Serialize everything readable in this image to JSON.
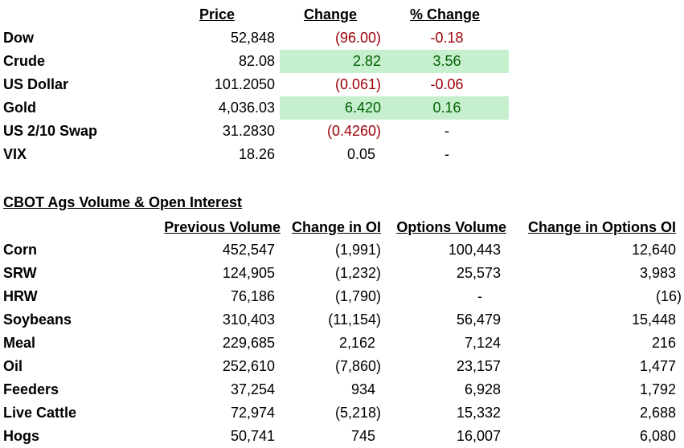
{
  "markets": {
    "headers": {
      "price": "Price",
      "change": "Change",
      "pct_change": "% Change"
    },
    "rows": [
      {
        "name": "Dow",
        "price": "52,848",
        "change": "(96.00)",
        "pct": "-0.18",
        "dir": "neg"
      },
      {
        "name": "Crude",
        "price": "82.08",
        "change": "2.82",
        "pct": "3.56",
        "dir": "pos"
      },
      {
        "name": "US Dollar",
        "price": "101.2050",
        "change": "(0.061)",
        "pct": "-0.06",
        "dir": "neg"
      },
      {
        "name": "Gold",
        "price": "4,036.03",
        "change": "6.420",
        "pct": "0.16",
        "dir": "pos"
      },
      {
        "name": "US 2/10 Swap",
        "price": "31.2830",
        "change": "(0.4260)",
        "pct": "-",
        "dir": "neg2"
      },
      {
        "name": "VIX",
        "price": "18.26",
        "change": "0.05",
        "pct": "-",
        "dir": "none"
      }
    ]
  },
  "cbot": {
    "title": "CBOT Ags Volume & Open Interest",
    "headers": {
      "prev_volume": "Previous Volume",
      "change_oi": "Change in OI",
      "options_volume": "Options Volume",
      "change_options_oi": "Change in Options OI"
    },
    "rows": [
      {
        "name": "Corn",
        "prev_volume": "452,547",
        "change_oi": "(1,991)",
        "options_volume": "100,443",
        "change_options_oi": "12,640"
      },
      {
        "name": "SRW",
        "prev_volume": "124,905",
        "change_oi": "(1,232)",
        "options_volume": "25,573",
        "change_options_oi": "3,983"
      },
      {
        "name": "HRW",
        "prev_volume": "76,186",
        "change_oi": "(1,790)",
        "options_volume": "-",
        "change_options_oi": "(16)"
      },
      {
        "name": "Soybeans",
        "prev_volume": "310,403",
        "change_oi": "(11,154)",
        "options_volume": "56,479",
        "change_options_oi": "15,448"
      },
      {
        "name": "Meal",
        "prev_volume": "229,685",
        "change_oi": "2,162",
        "options_volume": "7,124",
        "change_options_oi": "216"
      },
      {
        "name": "Oil",
        "prev_volume": "252,610",
        "change_oi": "(7,860)",
        "options_volume": "23,157",
        "change_options_oi": "1,477"
      },
      {
        "name": "Feeders",
        "prev_volume": "37,254",
        "change_oi": "934",
        "options_volume": "6,928",
        "change_options_oi": "1,792"
      },
      {
        "name": "Live Cattle",
        "prev_volume": "72,974",
        "change_oi": "(5,218)",
        "options_volume": "15,332",
        "change_options_oi": "2,688"
      },
      {
        "name": "Hogs",
        "prev_volume": "50,741",
        "change_oi": "745",
        "options_volume": "16,007",
        "change_options_oi": "6,080"
      }
    ]
  },
  "colors": {
    "negative": "#9c0006",
    "positive": "#006100",
    "positive_fill": "#c6efce"
  }
}
